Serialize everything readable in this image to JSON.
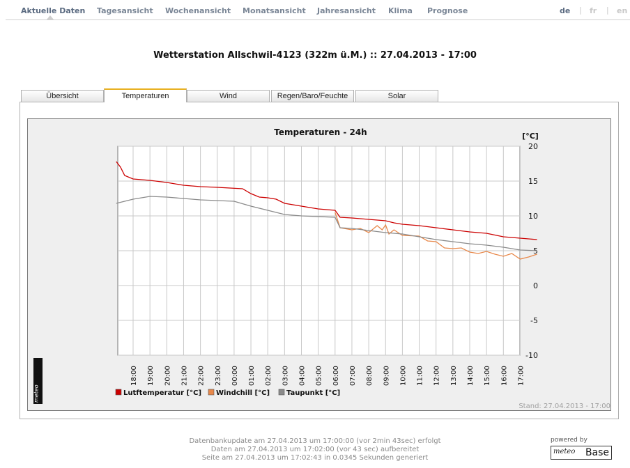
{
  "nav": {
    "items": [
      "Aktuelle Daten",
      "Tagesansicht",
      "Wochenansicht",
      "Monatsansicht",
      "Jahresansicht",
      "Klima",
      "Prognose"
    ],
    "active": "Aktuelle Daten",
    "languages": [
      "de",
      "fr",
      "en"
    ],
    "active_language": "de"
  },
  "station_title": "Wetterstation Allschwil-4123 (322m ü.M.) :: 27.04.2013 - 17:00",
  "tabs": [
    "Übersicht",
    "Temperaturen",
    "Wind",
    "Regen/Baro/Feuchte",
    "Solar"
  ],
  "active_tab": "Temperaturen",
  "chart_data": {
    "type": "line",
    "title": "Temperaturen - 24h",
    "unit_label": "[°C]",
    "y_ticks": [
      20,
      15,
      10,
      5,
      0,
      -5,
      -10
    ],
    "ylim": [
      -10,
      20
    ],
    "x_ticks": [
      "18:00",
      "19:00",
      "20:00",
      "21:00",
      "22:00",
      "23:00",
      "00:00",
      "01:00",
      "02:00",
      "03:00",
      "04:00",
      "05:00",
      "06:00",
      "07:00",
      "08:00",
      "09:00",
      "10:00",
      "11:00",
      "12:00",
      "13:00",
      "14:00",
      "15:00",
      "16:00",
      "17:00"
    ],
    "grid": true,
    "legend_position": "bottom-left",
    "series": [
      {
        "name": "Lutftemperatur [°C]",
        "color": "#cc0000",
        "points": [
          [
            -1,
            17.8
          ],
          [
            -0.75,
            17
          ],
          [
            -0.5,
            15.8
          ],
          [
            0,
            15.3
          ],
          [
            1,
            15.1
          ],
          [
            2,
            14.8
          ],
          [
            3,
            14.4
          ],
          [
            4,
            14.2
          ],
          [
            5,
            14.1
          ],
          [
            6.5,
            13.9
          ],
          [
            7,
            13.2
          ],
          [
            7.5,
            12.7
          ],
          [
            8,
            12.6
          ],
          [
            8.5,
            12.4
          ],
          [
            9,
            11.8
          ],
          [
            10,
            11.4
          ],
          [
            11,
            11
          ],
          [
            12,
            10.8
          ],
          [
            12.3,
            9.8
          ],
          [
            13,
            9.7
          ],
          [
            14,
            9.5
          ],
          [
            15,
            9.3
          ],
          [
            15.5,
            9
          ],
          [
            16,
            8.8
          ],
          [
            17,
            8.6
          ],
          [
            18,
            8.3
          ],
          [
            19,
            8
          ],
          [
            20,
            7.7
          ],
          [
            21,
            7.5
          ],
          [
            22,
            7
          ],
          [
            23,
            6.8
          ],
          [
            24,
            6.6
          ]
        ]
      },
      {
        "name": "Windchill [°C]",
        "color": "#e8884a",
        "points": [
          [
            12,
            10.5
          ],
          [
            12.3,
            8.3
          ],
          [
            13,
            8
          ],
          [
            13.5,
            8.2
          ],
          [
            14,
            7.6
          ],
          [
            14.5,
            8.6
          ],
          [
            14.8,
            8
          ],
          [
            15,
            8.7
          ],
          [
            15.2,
            7.4
          ],
          [
            15.5,
            8
          ],
          [
            16,
            7.2
          ],
          [
            17,
            7.1
          ],
          [
            17.5,
            6.4
          ],
          [
            18,
            6.3
          ],
          [
            18.5,
            5.4
          ],
          [
            19,
            5.3
          ],
          [
            19.5,
            5.4
          ],
          [
            20,
            4.8
          ],
          [
            20.5,
            4.6
          ],
          [
            21,
            4.9
          ],
          [
            21.5,
            4.5
          ],
          [
            22,
            4.2
          ],
          [
            22.5,
            4.6
          ],
          [
            23,
            3.8
          ],
          [
            23.5,
            4.1
          ],
          [
            24,
            4.5
          ]
        ]
      },
      {
        "name": "Taupunkt [°C]",
        "color": "#8a8a8a",
        "points": [
          [
            -1,
            11.8
          ],
          [
            0,
            12.4
          ],
          [
            1,
            12.8
          ],
          [
            2,
            12.7
          ],
          [
            3,
            12.5
          ],
          [
            4,
            12.3
          ],
          [
            5,
            12.2
          ],
          [
            6,
            12.1
          ],
          [
            7,
            11.4
          ],
          [
            8,
            10.8
          ],
          [
            9,
            10.2
          ],
          [
            10,
            10
          ],
          [
            11,
            9.9
          ],
          [
            12,
            9.8
          ],
          [
            12.3,
            8.3
          ],
          [
            13,
            8.2
          ],
          [
            14,
            7.9
          ],
          [
            15,
            7.6
          ],
          [
            16,
            7.4
          ],
          [
            17,
            7
          ],
          [
            18,
            6.6
          ],
          [
            19,
            6.3
          ],
          [
            20,
            6
          ],
          [
            21,
            5.8
          ],
          [
            22,
            5.5
          ],
          [
            23,
            5.1
          ],
          [
            24,
            5
          ]
        ]
      }
    ],
    "stand": "Stand: 27.04.2013 - 17:00",
    "logo_text": "Base"
  },
  "footer": {
    "line1": "Datenbankupdate am 27.04.2013 um 17:00:00 (vor 2min 43sec) erfolgt",
    "line2": "Daten am 27.04.2013 um 17:02:00 (vor 43 sec) aufbereitet",
    "line3": "Seite am 27.04.2013 um 17:02:43 in 0.0345 Sekunden generiert"
  },
  "powered_by": "powered by",
  "logo": {
    "meteo": "meteo",
    "base": "Base"
  }
}
